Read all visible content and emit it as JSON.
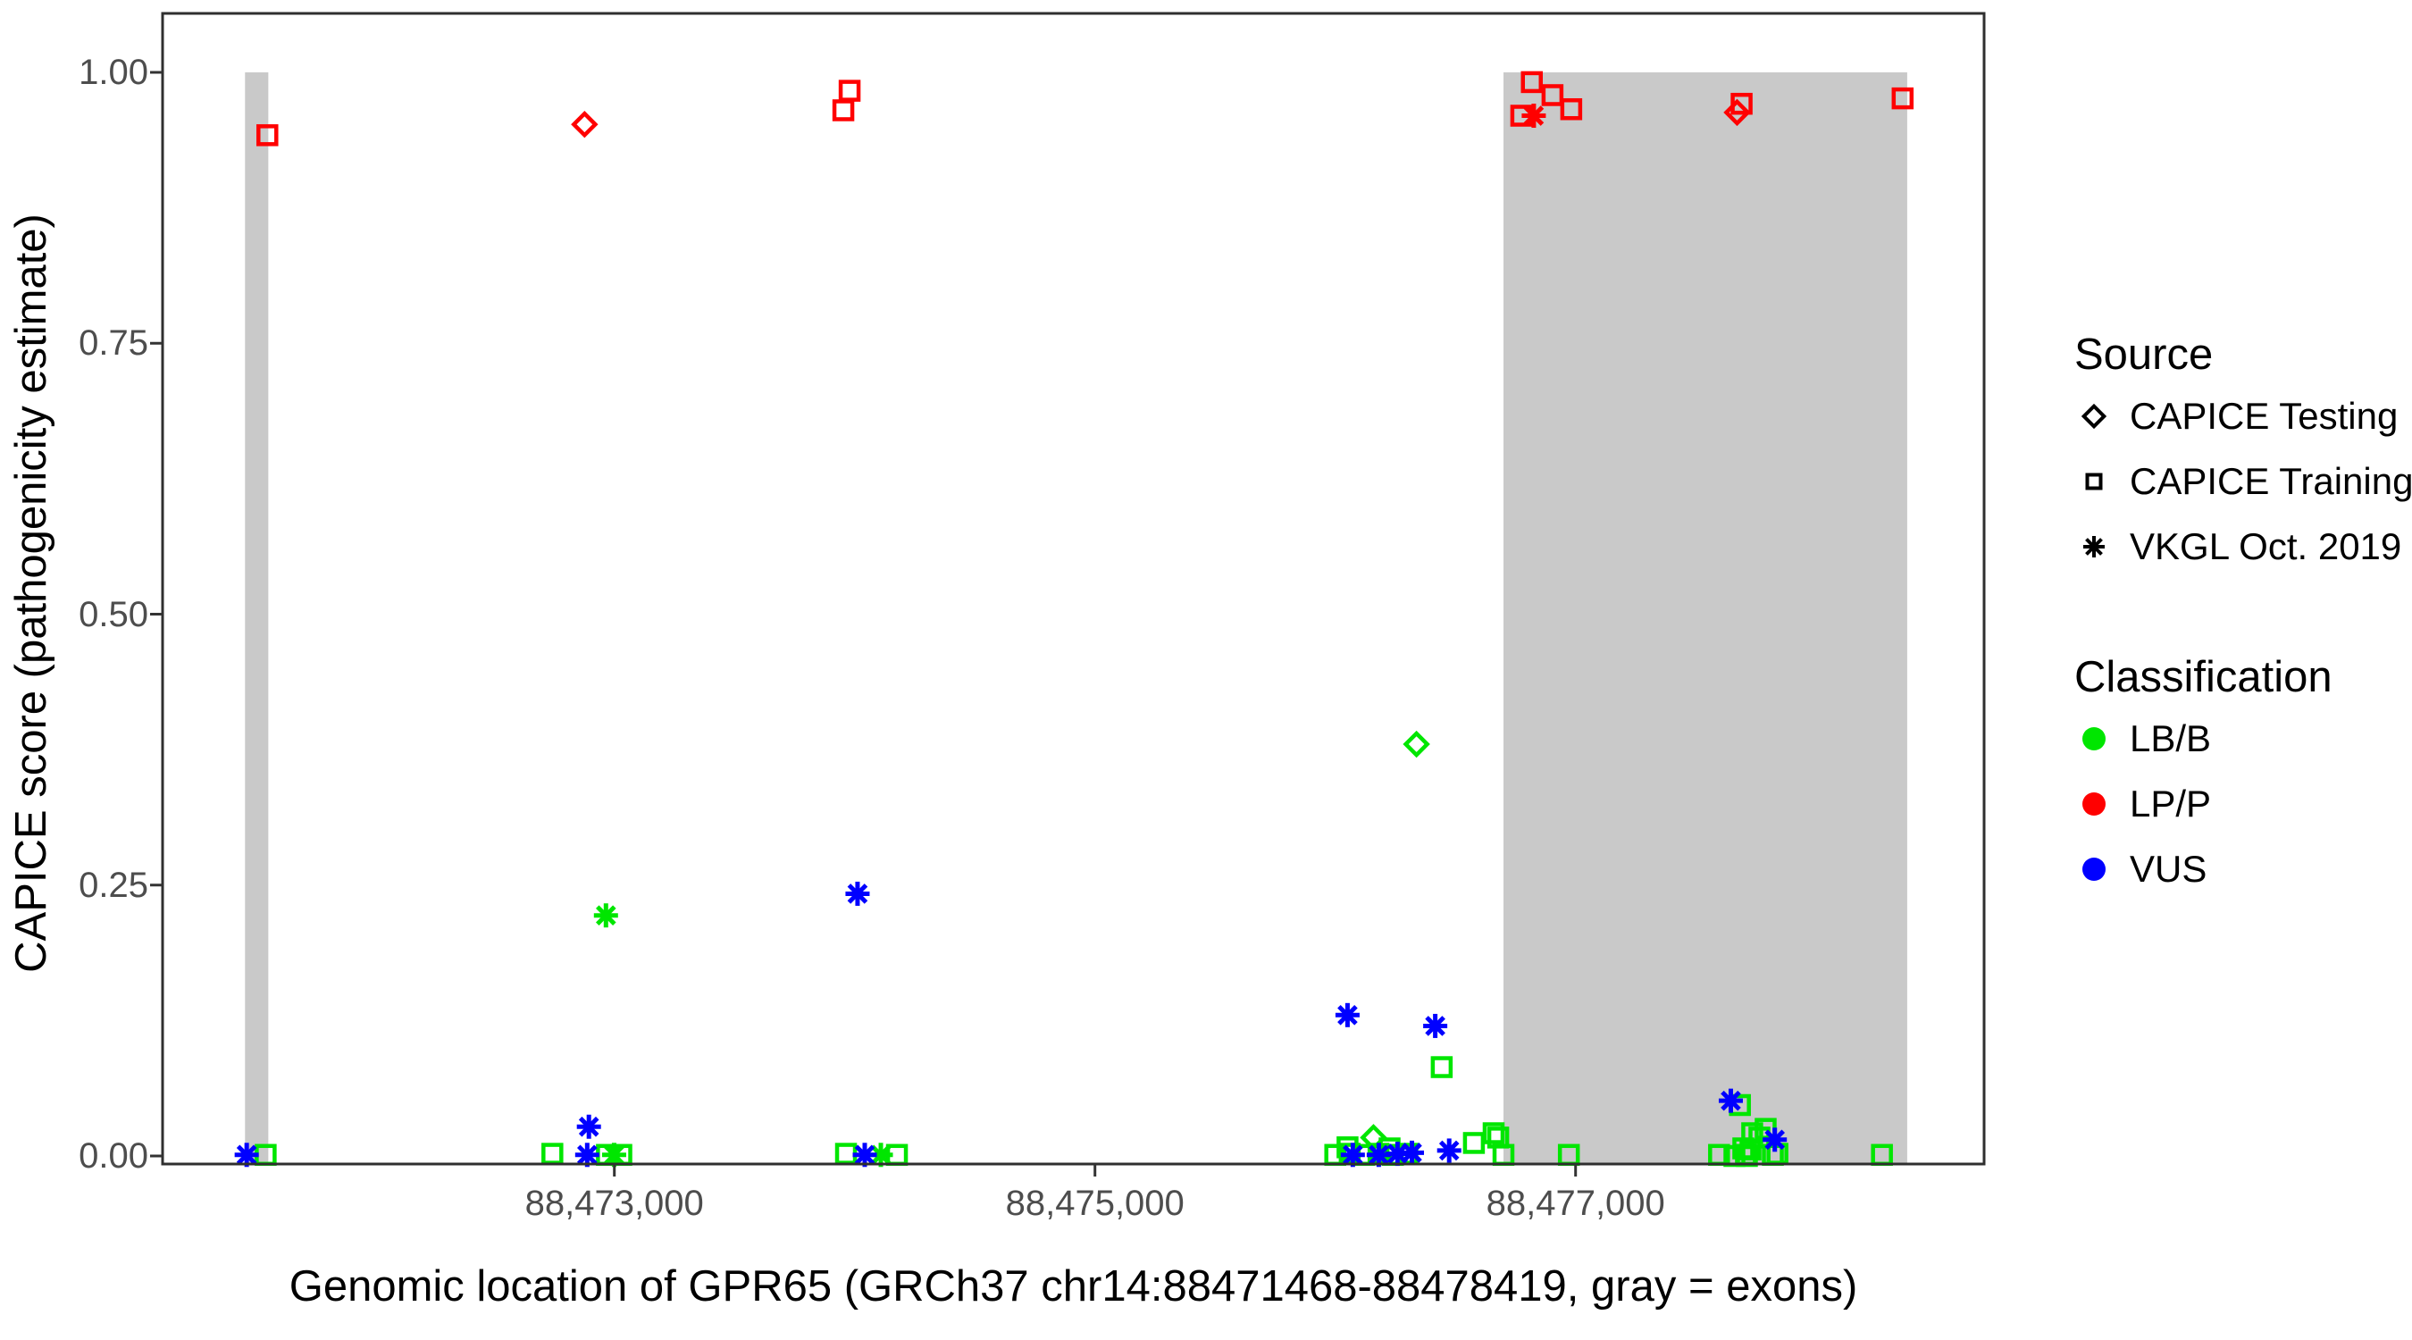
{
  "legend": {
    "source": {
      "title": "Source",
      "items": [
        {
          "label": "CAPICE Testing",
          "marker": "diamond"
        },
        {
          "label": "CAPICE Training",
          "marker": "square"
        },
        {
          "label": "VKGL Oct. 2019",
          "marker": "asterisk"
        }
      ]
    },
    "classification": {
      "title": "Classification",
      "items": [
        {
          "label": "LB/B",
          "color": "#00E600"
        },
        {
          "label": "LP/P",
          "color": "#FF0000"
        },
        {
          "label": "VUS",
          "color": "#0000FF"
        }
      ]
    }
  },
  "chart_data": {
    "type": "scatter",
    "title": "",
    "xlabel": "Genomic location of GPR65 (GRCh37 chr14:88471468-88478419, gray = exons)",
    "ylabel": "CAPICE score (pathogenicity estimate)",
    "xlim": [
      88471120,
      88478700
    ],
    "ylim": [
      0,
      1
    ],
    "x_ticks": [
      {
        "value": 88473000,
        "label": "88,473,000"
      },
      {
        "value": 88475000,
        "label": "88,475,000"
      },
      {
        "value": 88477000,
        "label": "88,477,000"
      }
    ],
    "y_ticks": [
      {
        "value": 0.0,
        "label": "0.00"
      },
      {
        "value": 0.25,
        "label": "0.25"
      },
      {
        "value": 0.5,
        "label": "0.50"
      },
      {
        "value": 0.75,
        "label": "0.75"
      },
      {
        "value": 1.0,
        "label": "1.00"
      }
    ],
    "grid": false,
    "legend_position": "right",
    "exon_color": "#C9C9C9",
    "exons": [
      {
        "start": 88471463,
        "end": 88471560
      },
      {
        "start": 88476700,
        "end": 88478380
      }
    ],
    "marker_by_source": {
      "testing": "diamond",
      "training": "square",
      "vkgl": "asterisk"
    },
    "color_by_classification": {
      "LB/B": "#00E600",
      "LP/P": "#FF0000",
      "VUS": "#0000FF"
    },
    "points": [
      {
        "x": 88471556,
        "y": 0.942,
        "src": "training",
        "cls": "LP/P"
      },
      {
        "x": 88472876,
        "y": 0.952,
        "src": "testing",
        "cls": "LP/P"
      },
      {
        "x": 88473953,
        "y": 0.965,
        "src": "training",
        "cls": "LP/P"
      },
      {
        "x": 88473979,
        "y": 0.983,
        "src": "training",
        "cls": "LP/P"
      },
      {
        "x": 88476774,
        "y": 0.96,
        "src": "training",
        "cls": "LP/P"
      },
      {
        "x": 88476818,
        "y": 0.991,
        "src": "training",
        "cls": "LP/P"
      },
      {
        "x": 88476904,
        "y": 0.979,
        "src": "training",
        "cls": "LP/P"
      },
      {
        "x": 88476982,
        "y": 0.966,
        "src": "training",
        "cls": "LP/P"
      },
      {
        "x": 88476826,
        "y": 0.96,
        "src": "vkgl",
        "cls": "LP/P"
      },
      {
        "x": 88477691,
        "y": 0.971,
        "src": "training",
        "cls": "LP/P"
      },
      {
        "x": 88477672,
        "y": 0.963,
        "src": "testing",
        "cls": "LP/P"
      },
      {
        "x": 88478361,
        "y": 0.976,
        "src": "training",
        "cls": "LP/P"
      },
      {
        "x": 88471549,
        "y": 0.001,
        "src": "training",
        "cls": "LB/B"
      },
      {
        "x": 88472742,
        "y": 0.002,
        "src": "training",
        "cls": "LB/B"
      },
      {
        "x": 88472965,
        "y": 0.222,
        "src": "vkgl",
        "cls": "LB/B"
      },
      {
        "x": 88472969,
        "y": 0.001,
        "src": "training",
        "cls": "LB/B"
      },
      {
        "x": 88472999,
        "y": 0.001,
        "src": "vkgl",
        "cls": "LB/B"
      },
      {
        "x": 88473029,
        "y": 0.001,
        "src": "training",
        "cls": "LB/B"
      },
      {
        "x": 88473964,
        "y": 0.002,
        "src": "training",
        "cls": "LB/B"
      },
      {
        "x": 88474109,
        "y": 0.001,
        "src": "vkgl",
        "cls": "LB/B"
      },
      {
        "x": 88474176,
        "y": 0.001,
        "src": "training",
        "cls": "LB/B"
      },
      {
        "x": 88476000,
        "y": 0.001,
        "src": "training",
        "cls": "LB/B"
      },
      {
        "x": 88476051,
        "y": 0.008,
        "src": "training",
        "cls": "LB/B"
      },
      {
        "x": 88476060,
        "y": 0.002,
        "src": "training",
        "cls": "LB/B"
      },
      {
        "x": 88476120,
        "y": 0.001,
        "src": "training",
        "cls": "LB/B"
      },
      {
        "x": 88476159,
        "y": 0.017,
        "src": "testing",
        "cls": "LB/B"
      },
      {
        "x": 88476180,
        "y": 0.002,
        "src": "training",
        "cls": "LB/B"
      },
      {
        "x": 88476226,
        "y": 0.007,
        "src": "training",
        "cls": "LB/B"
      },
      {
        "x": 88476240,
        "y": 0.001,
        "src": "training",
        "cls": "LB/B"
      },
      {
        "x": 88476300,
        "y": 0.002,
        "src": "training",
        "cls": "LB/B"
      },
      {
        "x": 88476338,
        "y": 0.38,
        "src": "testing",
        "cls": "LB/B"
      },
      {
        "x": 88476443,
        "y": 0.082,
        "src": "training",
        "cls": "LB/B"
      },
      {
        "x": 88476577,
        "y": 0.012,
        "src": "training",
        "cls": "LB/B"
      },
      {
        "x": 88476659,
        "y": 0.021,
        "src": "training",
        "cls": "LB/B"
      },
      {
        "x": 88476678,
        "y": 0.017,
        "src": "training",
        "cls": "LB/B"
      },
      {
        "x": 88476700,
        "y": 0.001,
        "src": "training",
        "cls": "LB/B"
      },
      {
        "x": 88476972,
        "y": 0.001,
        "src": "training",
        "cls": "LB/B"
      },
      {
        "x": 88477597,
        "y": 0.001,
        "src": "training",
        "cls": "LB/B"
      },
      {
        "x": 88477661,
        "y": 0.0,
        "src": "training",
        "cls": "LB/B"
      },
      {
        "x": 88477684,
        "y": 0.047,
        "src": "training",
        "cls": "LB/B"
      },
      {
        "x": 88477698,
        "y": 0.007,
        "src": "training",
        "cls": "LB/B"
      },
      {
        "x": 88477709,
        "y": 0.001,
        "src": "training",
        "cls": "LB/B"
      },
      {
        "x": 88477713,
        "y": 0.0,
        "src": "training",
        "cls": "LB/B"
      },
      {
        "x": 88477728,
        "y": 0.006,
        "src": "training",
        "cls": "LB/B"
      },
      {
        "x": 88477735,
        "y": 0.021,
        "src": "training",
        "cls": "LB/B"
      },
      {
        "x": 88477765,
        "y": 0.017,
        "src": "training",
        "cls": "LB/B"
      },
      {
        "x": 88477791,
        "y": 0.025,
        "src": "training",
        "cls": "LB/B"
      },
      {
        "x": 88477821,
        "y": 0.001,
        "src": "training",
        "cls": "LB/B"
      },
      {
        "x": 88477840,
        "y": 0.002,
        "src": "training",
        "cls": "LB/B"
      },
      {
        "x": 88478275,
        "y": 0.001,
        "src": "training",
        "cls": "LB/B"
      },
      {
        "x": 88471470,
        "y": 0.001,
        "src": "vkgl",
        "cls": "VUS"
      },
      {
        "x": 88472887,
        "y": 0.001,
        "src": "vkgl",
        "cls": "VUS"
      },
      {
        "x": 88472894,
        "y": 0.027,
        "src": "vkgl",
        "cls": "VUS"
      },
      {
        "x": 88474012,
        "y": 0.242,
        "src": "vkgl",
        "cls": "VUS"
      },
      {
        "x": 88474042,
        "y": 0.001,
        "src": "vkgl",
        "cls": "VUS"
      },
      {
        "x": 88476051,
        "y": 0.13,
        "src": "vkgl",
        "cls": "VUS"
      },
      {
        "x": 88476073,
        "y": 0.001,
        "src": "vkgl",
        "cls": "VUS"
      },
      {
        "x": 88476181,
        "y": 0.001,
        "src": "vkgl",
        "cls": "VUS"
      },
      {
        "x": 88476259,
        "y": 0.002,
        "src": "vkgl",
        "cls": "VUS"
      },
      {
        "x": 88476319,
        "y": 0.003,
        "src": "vkgl",
        "cls": "VUS"
      },
      {
        "x": 88476416,
        "y": 0.12,
        "src": "vkgl",
        "cls": "VUS"
      },
      {
        "x": 88476474,
        "y": 0.005,
        "src": "vkgl",
        "cls": "VUS"
      },
      {
        "x": 88477646,
        "y": 0.051,
        "src": "vkgl",
        "cls": "VUS"
      },
      {
        "x": 88477829,
        "y": 0.015,
        "src": "vkgl",
        "cls": "VUS"
      }
    ]
  }
}
